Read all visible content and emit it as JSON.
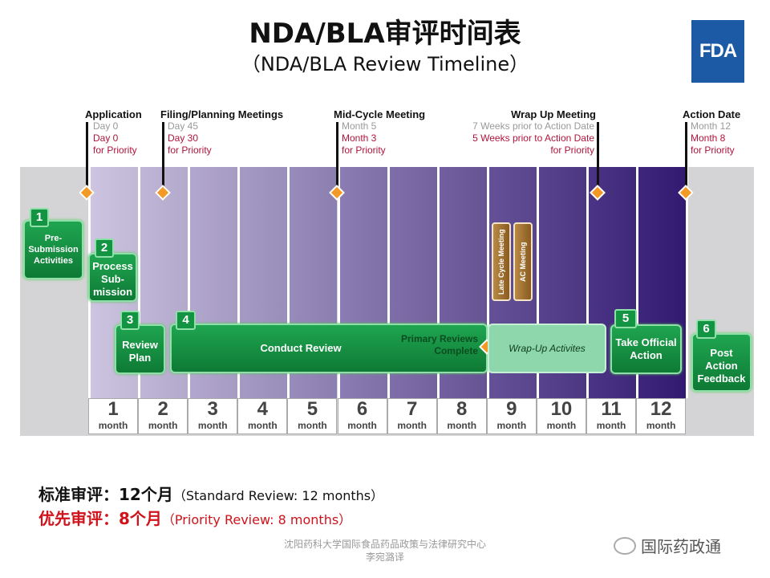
{
  "title": "NDA/BLA审评时间表",
  "subtitle": "（NDA/BLA Review Timeline）",
  "logo": "FDA",
  "milestones": [
    {
      "heading": "Application",
      "standard": "Day 0",
      "priority": "Day 0",
      "priority_note": "for Priority"
    },
    {
      "heading": "Filing/Planning Meetings",
      "standard": "Day 45",
      "priority": "Day 30",
      "priority_note": "for Priority"
    },
    {
      "heading": "Mid-Cycle Meeting",
      "standard": "Month 5",
      "priority": "Month 3",
      "priority_note": "for Priority"
    },
    {
      "heading": "Wrap Up Meeting",
      "standard": "7 Weeks prior to Action Date",
      "priority": "5 Weeks prior to Action Date",
      "priority_note": "for Priority"
    },
    {
      "heading": "Action Date",
      "standard": "Month 12",
      "priority": "Month 8",
      "priority_note": "for Priority"
    }
  ],
  "steps": [
    {
      "num": "1",
      "label": "Pre-Submission Activities"
    },
    {
      "num": "2",
      "label": "Process Sub-mission"
    },
    {
      "num": "3",
      "label": "Review Plan"
    },
    {
      "num": "4",
      "label": "Conduct Review"
    },
    {
      "num": "5",
      "label": "Take Official Action"
    },
    {
      "num": "6",
      "label": "Post Action Feedback"
    }
  ],
  "primary_reviews": "Primary Reviews Complete",
  "wrap_up": "Wrap-Up Activites",
  "late_cycle": "Late Cycle Meeting",
  "ac_meeting": "AC Meeting",
  "months": [
    "1",
    "2",
    "3",
    "4",
    "5",
    "6",
    "7",
    "8",
    "9",
    "10",
    "11",
    "12"
  ],
  "month_unit": "month",
  "standard": {
    "label": "标准审评：",
    "value": "12个月",
    "en": "（Standard Review:  12 months）",
    "color": "#111111"
  },
  "priority": {
    "label": "优先审评：",
    "value": "8个月",
    "en": "（Priority Review: 8 months）",
    "color": "#d0121b"
  },
  "footer": {
    "line1": "沈阳药科大学国际食品药品政策与法律研究中心",
    "line2": "李宛潞译"
  },
  "watermark": "国际药政通"
}
